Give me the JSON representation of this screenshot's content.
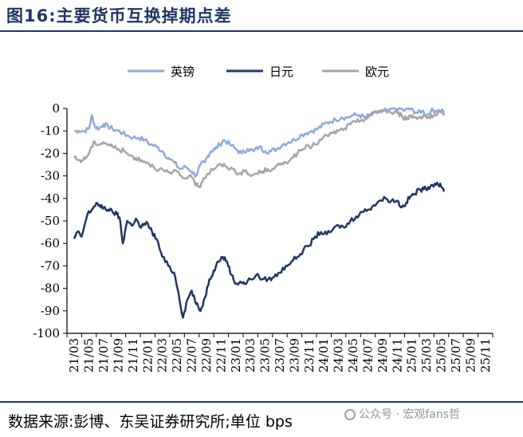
{
  "figure": {
    "title": "图16:主要货币互换掉期点差",
    "source": "数据来源:彭博、东吴证券研究所;单位 bps",
    "watermark": "公众号 · 宏观fans哲"
  },
  "chart_data": {
    "type": "line",
    "title": "",
    "xlabel": "",
    "ylabel": "",
    "ylim": [
      -100,
      0
    ],
    "yticks": [
      0,
      -10,
      -20,
      -30,
      -40,
      -50,
      -60,
      -70,
      -80,
      -90,
      -100
    ],
    "xticks": [
      "21/03",
      "21/05",
      "21/07",
      "21/09",
      "21/11",
      "22/01",
      "22/03",
      "22/05",
      "22/07",
      "22/09",
      "22/11",
      "23/01",
      "23/03",
      "23/05",
      "23/07",
      "23/09",
      "23/11",
      "24/01",
      "24/03",
      "24/05",
      "24/07",
      "24/09",
      "24/11",
      "25/01",
      "25/03",
      "25/05",
      "25/07",
      "25/09",
      "25/11"
    ],
    "grid": false,
    "legend_position": "top",
    "series": [
      {
        "name": "英镑",
        "color": "#8eaadb",
        "width": 2.5,
        "x": [
          0,
          0.3,
          0.7,
          1.0,
          1.2,
          1.4,
          1.7,
          2.0,
          2.3,
          2.6,
          3.0,
          3.3,
          3.6,
          4.0,
          4.4,
          4.8,
          5.2,
          5.6,
          6.0,
          6.4,
          6.8,
          7.2,
          7.6,
          8.0,
          8.3,
          8.6,
          8.9,
          9.1,
          9.3,
          9.6,
          9.9,
          10.2,
          10.6,
          11.0,
          11.4,
          11.8,
          12.2,
          12.6,
          13.0,
          13.4,
          13.8,
          14.2,
          14.6,
          15.0,
          15.4,
          15.8,
          16.2,
          16.6,
          17.0,
          17.4,
          17.8,
          18.2,
          18.6,
          19.0,
          19.4,
          19.8,
          20.2,
          20.6,
          21.0,
          21.4,
          21.8,
          22.2,
          22.5,
          22.8,
          23.1,
          23.4,
          23.7,
          24.0,
          24.3,
          24.6,
          24.9,
          25.2
        ],
        "values": [
          -10,
          -10,
          -10,
          -9,
          -3,
          -8,
          -9,
          -7,
          -8,
          -9,
          -10,
          -11,
          -12,
          -13,
          -13,
          -14,
          -16,
          -17,
          -19,
          -22,
          -24,
          -27,
          -26,
          -28,
          -30,
          -25,
          -24,
          -21,
          -19,
          -18,
          -16,
          -14,
          -16,
          -18,
          -20,
          -18,
          -19,
          -17,
          -19,
          -19,
          -18,
          -16,
          -15,
          -14,
          -12,
          -11,
          -10,
          -9,
          -7,
          -6,
          -5,
          -4,
          -4,
          -3,
          -3,
          -4,
          -3,
          -2,
          -1,
          -1,
          0,
          0,
          -1,
          0,
          -1,
          -2,
          -1,
          -3,
          -1,
          -1,
          -1,
          -1
        ]
      },
      {
        "name": "日元",
        "color": "#1f3864",
        "width": 2.5,
        "x": [
          0,
          0.2,
          0.5,
          0.9,
          1.2,
          1.5,
          1.8,
          2.0,
          2.3,
          2.6,
          2.9,
          3.1,
          3.3,
          3.6,
          3.9,
          4.2,
          4.5,
          4.7,
          5.0,
          5.3,
          5.6,
          6.0,
          6.4,
          6.8,
          7.1,
          7.4,
          7.7,
          8.0,
          8.3,
          8.6,
          8.9,
          9.2,
          9.5,
          9.8,
          10.1,
          10.4,
          10.7,
          11.0,
          11.3,
          11.6,
          12.0,
          12.4,
          12.8,
          13.2,
          13.6,
          14.0,
          14.4,
          14.8,
          15.2,
          15.6,
          16.0,
          16.4,
          16.8,
          17.2,
          17.6,
          18.0,
          18.4,
          18.8,
          19.2,
          19.6,
          20.0,
          20.4,
          20.8,
          21.2,
          21.6,
          22.0,
          22.3,
          22.6,
          22.9,
          23.2,
          23.5,
          23.8,
          24.1,
          24.4,
          24.7,
          25.0,
          25.2
        ],
        "values": [
          -58,
          -55,
          -57,
          -47,
          -45,
          -42,
          -44,
          -44,
          -45,
          -46,
          -47,
          -49,
          -60,
          -50,
          -52,
          -49,
          -53,
          -52,
          -51,
          -55,
          -58,
          -66,
          -70,
          -73,
          -82,
          -93,
          -85,
          -81,
          -87,
          -90,
          -84,
          -76,
          -72,
          -68,
          -66,
          -68,
          -74,
          -78,
          -77,
          -78,
          -76,
          -74,
          -76,
          -76,
          -75,
          -73,
          -70,
          -68,
          -66,
          -63,
          -61,
          -57,
          -55,
          -56,
          -54,
          -52,
          -53,
          -50,
          -48,
          -46,
          -45,
          -43,
          -41,
          -40,
          -41,
          -41,
          -44,
          -42,
          -39,
          -38,
          -36,
          -36,
          -35,
          -34,
          -33,
          -35,
          -37
        ]
      },
      {
        "name": "欧元",
        "color": "#a6a6a6",
        "width": 2.5,
        "x": [
          0,
          0.3,
          0.6,
          0.9,
          1.2,
          1.4,
          1.7,
          2.0,
          2.3,
          2.6,
          3.0,
          3.4,
          3.8,
          4.2,
          4.6,
          5.0,
          5.4,
          5.8,
          6.2,
          6.6,
          7.0,
          7.4,
          7.8,
          8.2,
          8.5,
          8.8,
          9.1,
          9.4,
          9.7,
          10.0,
          10.4,
          10.8,
          11.2,
          11.6,
          12.0,
          12.4,
          12.8,
          13.2,
          13.6,
          14.0,
          14.4,
          14.8,
          15.2,
          15.6,
          16.0,
          16.4,
          16.8,
          17.2,
          17.6,
          18.0,
          18.4,
          18.8,
          19.2,
          19.6,
          20.0,
          20.4,
          20.8,
          21.2,
          21.6,
          22.0,
          22.3,
          22.6,
          22.9,
          23.2,
          23.5,
          23.8,
          24.1,
          24.4,
          24.7,
          25.0,
          25.2
        ],
        "values": [
          -22,
          -23,
          -23,
          -21,
          -17,
          -15,
          -16,
          -15,
          -16,
          -17,
          -18,
          -19,
          -21,
          -22,
          -23,
          -24,
          -26,
          -27,
          -28,
          -29,
          -28,
          -31,
          -30,
          -33,
          -35,
          -31,
          -29,
          -27,
          -26,
          -25,
          -26,
          -27,
          -29,
          -28,
          -30,
          -29,
          -28,
          -27,
          -27,
          -25,
          -24,
          -22,
          -20,
          -18,
          -17,
          -16,
          -14,
          -12,
          -11,
          -10,
          -9,
          -7,
          -6,
          -5,
          -4,
          -2,
          -1,
          -1,
          -2,
          -2,
          -3,
          -5,
          -3,
          -4,
          -4,
          -3,
          -4,
          -4,
          -3,
          -2,
          -2
        ]
      }
    ]
  }
}
